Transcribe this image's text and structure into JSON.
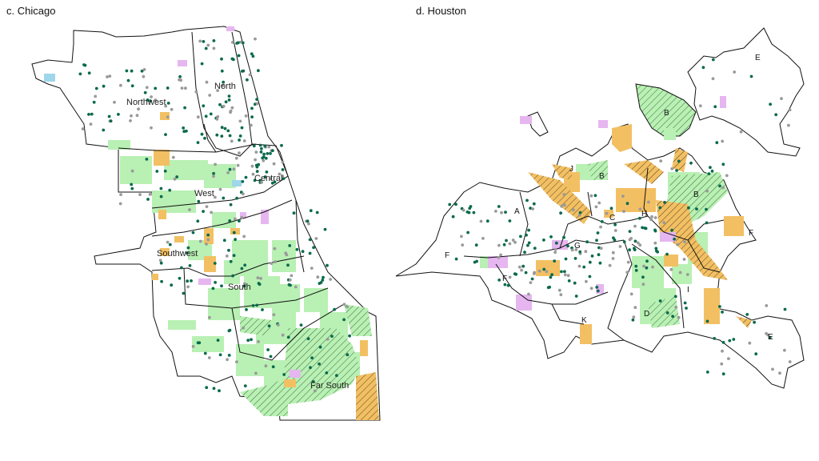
{
  "panels": [
    {
      "id": "chicago",
      "title": "c. Chicago",
      "regions": [
        "Northwest",
        "North",
        "Central",
        "West",
        "Southwest",
        "South",
        "Far South"
      ]
    },
    {
      "id": "houston",
      "title": "d. Houston",
      "regions": [
        "A",
        "B",
        "B",
        "B",
        "C",
        "D",
        "E",
        "E",
        "F",
        "F",
        "F",
        "G",
        "H",
        "I",
        "J",
        "K"
      ]
    }
  ],
  "colors": {
    "green_area": "#b9f0b4",
    "orange_area": "#f2c063",
    "purple_area": "#e6b6f0",
    "blue_area": "#9fd6ea",
    "dark_dot": "#0b6a4d",
    "gray_dot": "#9a9a9a",
    "boundary": "#111111"
  }
}
